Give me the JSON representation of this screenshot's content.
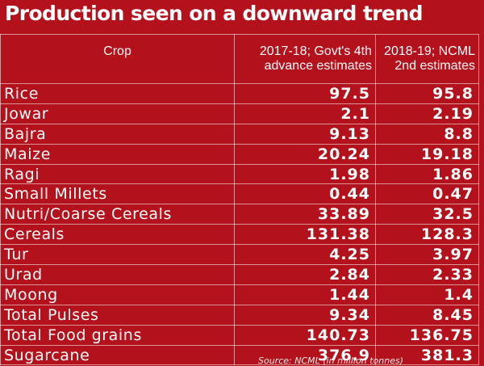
{
  "chart_data": {
    "type": "table",
    "title": "Production seen on a downward trend",
    "columns": [
      "Crop",
      "2017-18; Govt's 4th advance estimates",
      "2018-19; NCML 2nd estimates"
    ],
    "header_lines": {
      "col2": [
        "2017-18; Govt's 4th",
        "advance estimates"
      ],
      "col3": [
        "2018-19; NCML",
        "2nd estimates"
      ]
    },
    "rows": [
      {
        "crop": "Rice",
        "v2017": "97.5",
        "v2018": "95.8"
      },
      {
        "crop": "Jowar",
        "v2017": "2.1",
        "v2018": "2.19"
      },
      {
        "crop": "Bajra",
        "v2017": "9.13",
        "v2018": "8.8"
      },
      {
        "crop": "Maize",
        "v2017": "20.24",
        "v2018": "19.18"
      },
      {
        "crop": "Ragi",
        "v2017": "1.98",
        "v2018": "1.86"
      },
      {
        "crop": "Small Millets",
        "v2017": "0.44",
        "v2018": "0.47"
      },
      {
        "crop": "Nutri/Coarse Cereals",
        "v2017": "33.89",
        "v2018": "32.5"
      },
      {
        "crop": "Cereals",
        "v2017": "131.38",
        "v2018": "128.3"
      },
      {
        "crop": "Tur",
        "v2017": "4.25",
        "v2018": "3.97"
      },
      {
        "crop": "Urad",
        "v2017": "2.84",
        "v2018": "2.33"
      },
      {
        "crop": "Moong",
        "v2017": "1.44",
        "v2018": "1.4"
      },
      {
        "crop": "Total Pulses",
        "v2017": "9.34",
        "v2018": "8.45"
      },
      {
        "crop": "Total Food grains",
        "v2017": "140.73",
        "v2018": "136.75"
      },
      {
        "crop": "Sugarcane",
        "v2017": "376.9",
        "v2018": "381.3"
      }
    ],
    "source": "Source: NCML (in million tonnes)"
  },
  "colors": {
    "background": "#b3121c",
    "text": "#ffffff",
    "grid": "#f0c0c0"
  }
}
